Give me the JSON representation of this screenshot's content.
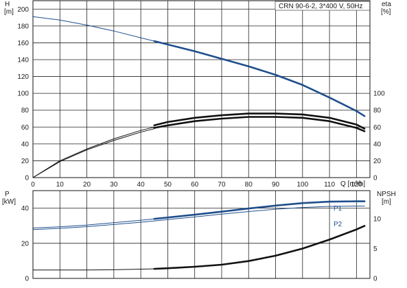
{
  "header": {
    "title": "CRN 90-6-2, 3*400 V, 50Hz"
  },
  "colors": {
    "head": "#1f4e8c",
    "eff": "#111111",
    "power": "#1f4e8c",
    "npsh": "#111111",
    "grid": "#222222"
  },
  "chart_data": [
    {
      "type": "line",
      "title": "CRN 90-6-2, 3*400 V, 50Hz",
      "xlabel": "Q [m³/h]",
      "ylabel_left": "H\n[m]",
      "ylabel_right": "eta\n[%]",
      "x_ticks": [
        "0",
        "10",
        "20",
        "30",
        "40",
        "50",
        "60",
        "70",
        "80",
        "90",
        "100",
        "110",
        "120"
      ],
      "y_left_ticks": [
        "0",
        "20",
        "40",
        "60",
        "80",
        "100",
        "120",
        "140",
        "160",
        "180",
        "200"
      ],
      "y_right_ticks": [
        "0",
        "20",
        "40",
        "60",
        "80",
        "100"
      ],
      "xlim": [
        0,
        125
      ],
      "ylim_left": [
        0,
        210
      ],
      "ylim_right": [
        0,
        210
      ],
      "grid": true,
      "operating_range_start": 45,
      "series": [
        {
          "name": "",
          "axis": "left",
          "color": "#1f4e8c",
          "width": "thin",
          "x": [
            0,
            10,
            20,
            30,
            40,
            45
          ],
          "y": [
            191,
            187,
            181,
            174,
            166,
            162
          ]
        },
        {
          "name": "",
          "axis": "left",
          "color": "#1f4e8c",
          "width": "thick",
          "x": [
            45,
            50,
            60,
            70,
            80,
            90,
            100,
            110,
            120,
            123
          ],
          "y": [
            162,
            158,
            150,
            141,
            132,
            122,
            110,
            95,
            79,
            73
          ]
        },
        {
          "name": "",
          "axis": "right",
          "color": "#111111",
          "width": "thin",
          "x": [
            0,
            10,
            20,
            30,
            40,
            45
          ],
          "y": [
            0,
            20,
            34,
            46,
            56,
            60
          ]
        },
        {
          "name": "",
          "axis": "right",
          "color": "#111111",
          "width": "thin",
          "x": [
            0,
            10,
            20,
            30,
            40,
            45
          ],
          "y": [
            0,
            19,
            33,
            44,
            54,
            58
          ]
        },
        {
          "name": "",
          "axis": "right",
          "color": "#111111",
          "width": "thick",
          "x": [
            45,
            50,
            60,
            70,
            80,
            90,
            100,
            110,
            120,
            123
          ],
          "y": [
            62,
            66,
            71,
            74,
            76,
            76,
            75,
            71,
            63,
            58
          ]
        },
        {
          "name": "",
          "axis": "right",
          "color": "#111111",
          "width": "thick",
          "x": [
            45,
            50,
            60,
            70,
            80,
            90,
            100,
            110,
            120,
            123
          ],
          "y": [
            59,
            62,
            67,
            70,
            72,
            72,
            71,
            67,
            59,
            55
          ]
        }
      ]
    },
    {
      "type": "line",
      "title": "",
      "xlabel": "",
      "ylabel_left": "P\n[kW]",
      "ylabel_right": "NPSH\n[m]",
      "y_left_ticks": [
        "0",
        "20",
        "40"
      ],
      "y_right_ticks": [
        "0",
        "5",
        "10"
      ],
      "xlim": [
        0,
        125
      ],
      "ylim_left": [
        0,
        50
      ],
      "ylim_right": [
        0,
        14.7
      ],
      "grid": true,
      "series": [
        {
          "name": "P1",
          "axis": "left",
          "color": "#1f4e8c",
          "width": "thin",
          "x": [
            0,
            10,
            20,
            30,
            40,
            45
          ],
          "y": [
            28.7,
            29.4,
            30.4,
            31.7,
            33.1,
            33.9
          ]
        },
        {
          "name": "P1",
          "axis": "left",
          "color": "#1f4e8c",
          "width": "thick",
          "x": [
            45,
            50,
            60,
            70,
            80,
            90,
            100,
            110,
            120,
            123
          ],
          "y": [
            33.9,
            34.7,
            36.3,
            38.0,
            39.8,
            41.5,
            42.9,
            43.7,
            43.9,
            43.9
          ]
        },
        {
          "name": "P2",
          "axis": "left",
          "color": "#1f4e8c",
          "width": "thin",
          "x": [
            0,
            10,
            20,
            30,
            40,
            50,
            60,
            70,
            80,
            90,
            100,
            110,
            120,
            123
          ],
          "y": [
            27.8,
            28.5,
            29.5,
            30.7,
            32.0,
            33.5,
            35.0,
            36.6,
            38.1,
            39.4,
            40.4,
            41.0,
            41.2,
            41.2
          ]
        },
        {
          "name": "",
          "axis": "right",
          "color": "#111111",
          "width": "thin",
          "x": [
            0,
            10,
            20,
            30,
            40,
            45
          ],
          "y": [
            1.4,
            1.4,
            1.4,
            1.45,
            1.55,
            1.6
          ]
        },
        {
          "name": "",
          "axis": "right",
          "color": "#111111",
          "width": "thick",
          "x": [
            45,
            50,
            60,
            70,
            80,
            90,
            100,
            110,
            120,
            123
          ],
          "y": [
            1.6,
            1.7,
            1.95,
            2.3,
            2.9,
            3.8,
            5.0,
            6.5,
            8.2,
            8.8
          ]
        }
      ]
    }
  ]
}
